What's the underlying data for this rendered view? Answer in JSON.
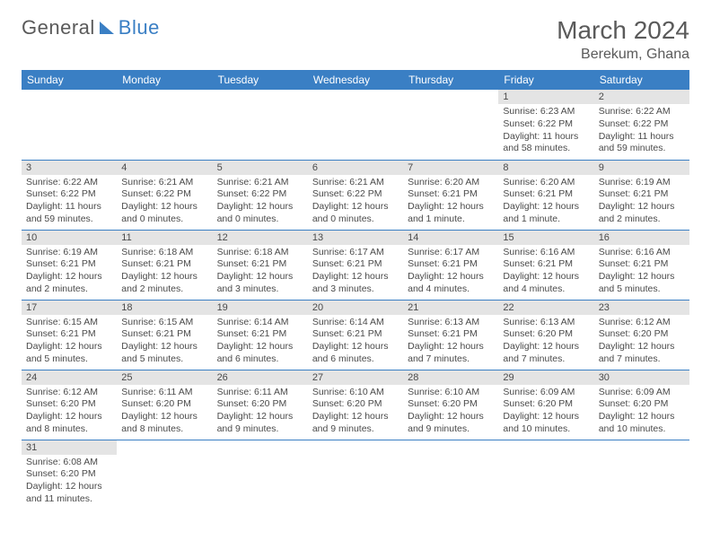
{
  "logo": {
    "text_a": "General",
    "text_b": "Blue"
  },
  "title": "March 2024",
  "location": "Berekum, Ghana",
  "colors": {
    "header_bg": "#3a7fc4",
    "header_fg": "#ffffff",
    "daynum_bg": "#e4e4e4",
    "row_border": "#3a7fc4",
    "text": "#4a4a4a",
    "page_bg": "#ffffff"
  },
  "weekdays": [
    "Sunday",
    "Monday",
    "Tuesday",
    "Wednesday",
    "Thursday",
    "Friday",
    "Saturday"
  ],
  "weeks": [
    [
      null,
      null,
      null,
      null,
      null,
      {
        "n": "1",
        "sunrise": "Sunrise: 6:23 AM",
        "sunset": "Sunset: 6:22 PM",
        "daylight": "Daylight: 11 hours and 58 minutes."
      },
      {
        "n": "2",
        "sunrise": "Sunrise: 6:22 AM",
        "sunset": "Sunset: 6:22 PM",
        "daylight": "Daylight: 11 hours and 59 minutes."
      }
    ],
    [
      {
        "n": "3",
        "sunrise": "Sunrise: 6:22 AM",
        "sunset": "Sunset: 6:22 PM",
        "daylight": "Daylight: 11 hours and 59 minutes."
      },
      {
        "n": "4",
        "sunrise": "Sunrise: 6:21 AM",
        "sunset": "Sunset: 6:22 PM",
        "daylight": "Daylight: 12 hours and 0 minutes."
      },
      {
        "n": "5",
        "sunrise": "Sunrise: 6:21 AM",
        "sunset": "Sunset: 6:22 PM",
        "daylight": "Daylight: 12 hours and 0 minutes."
      },
      {
        "n": "6",
        "sunrise": "Sunrise: 6:21 AM",
        "sunset": "Sunset: 6:22 PM",
        "daylight": "Daylight: 12 hours and 0 minutes."
      },
      {
        "n": "7",
        "sunrise": "Sunrise: 6:20 AM",
        "sunset": "Sunset: 6:21 PM",
        "daylight": "Daylight: 12 hours and 1 minute."
      },
      {
        "n": "8",
        "sunrise": "Sunrise: 6:20 AM",
        "sunset": "Sunset: 6:21 PM",
        "daylight": "Daylight: 12 hours and 1 minute."
      },
      {
        "n": "9",
        "sunrise": "Sunrise: 6:19 AM",
        "sunset": "Sunset: 6:21 PM",
        "daylight": "Daylight: 12 hours and 2 minutes."
      }
    ],
    [
      {
        "n": "10",
        "sunrise": "Sunrise: 6:19 AM",
        "sunset": "Sunset: 6:21 PM",
        "daylight": "Daylight: 12 hours and 2 minutes."
      },
      {
        "n": "11",
        "sunrise": "Sunrise: 6:18 AM",
        "sunset": "Sunset: 6:21 PM",
        "daylight": "Daylight: 12 hours and 2 minutes."
      },
      {
        "n": "12",
        "sunrise": "Sunrise: 6:18 AM",
        "sunset": "Sunset: 6:21 PM",
        "daylight": "Daylight: 12 hours and 3 minutes."
      },
      {
        "n": "13",
        "sunrise": "Sunrise: 6:17 AM",
        "sunset": "Sunset: 6:21 PM",
        "daylight": "Daylight: 12 hours and 3 minutes."
      },
      {
        "n": "14",
        "sunrise": "Sunrise: 6:17 AM",
        "sunset": "Sunset: 6:21 PM",
        "daylight": "Daylight: 12 hours and 4 minutes."
      },
      {
        "n": "15",
        "sunrise": "Sunrise: 6:16 AM",
        "sunset": "Sunset: 6:21 PM",
        "daylight": "Daylight: 12 hours and 4 minutes."
      },
      {
        "n": "16",
        "sunrise": "Sunrise: 6:16 AM",
        "sunset": "Sunset: 6:21 PM",
        "daylight": "Daylight: 12 hours and 5 minutes."
      }
    ],
    [
      {
        "n": "17",
        "sunrise": "Sunrise: 6:15 AM",
        "sunset": "Sunset: 6:21 PM",
        "daylight": "Daylight: 12 hours and 5 minutes."
      },
      {
        "n": "18",
        "sunrise": "Sunrise: 6:15 AM",
        "sunset": "Sunset: 6:21 PM",
        "daylight": "Daylight: 12 hours and 5 minutes."
      },
      {
        "n": "19",
        "sunrise": "Sunrise: 6:14 AM",
        "sunset": "Sunset: 6:21 PM",
        "daylight": "Daylight: 12 hours and 6 minutes."
      },
      {
        "n": "20",
        "sunrise": "Sunrise: 6:14 AM",
        "sunset": "Sunset: 6:21 PM",
        "daylight": "Daylight: 12 hours and 6 minutes."
      },
      {
        "n": "21",
        "sunrise": "Sunrise: 6:13 AM",
        "sunset": "Sunset: 6:21 PM",
        "daylight": "Daylight: 12 hours and 7 minutes."
      },
      {
        "n": "22",
        "sunrise": "Sunrise: 6:13 AM",
        "sunset": "Sunset: 6:20 PM",
        "daylight": "Daylight: 12 hours and 7 minutes."
      },
      {
        "n": "23",
        "sunrise": "Sunrise: 6:12 AM",
        "sunset": "Sunset: 6:20 PM",
        "daylight": "Daylight: 12 hours and 7 minutes."
      }
    ],
    [
      {
        "n": "24",
        "sunrise": "Sunrise: 6:12 AM",
        "sunset": "Sunset: 6:20 PM",
        "daylight": "Daylight: 12 hours and 8 minutes."
      },
      {
        "n": "25",
        "sunrise": "Sunrise: 6:11 AM",
        "sunset": "Sunset: 6:20 PM",
        "daylight": "Daylight: 12 hours and 8 minutes."
      },
      {
        "n": "26",
        "sunrise": "Sunrise: 6:11 AM",
        "sunset": "Sunset: 6:20 PM",
        "daylight": "Daylight: 12 hours and 9 minutes."
      },
      {
        "n": "27",
        "sunrise": "Sunrise: 6:10 AM",
        "sunset": "Sunset: 6:20 PM",
        "daylight": "Daylight: 12 hours and 9 minutes."
      },
      {
        "n": "28",
        "sunrise": "Sunrise: 6:10 AM",
        "sunset": "Sunset: 6:20 PM",
        "daylight": "Daylight: 12 hours and 9 minutes."
      },
      {
        "n": "29",
        "sunrise": "Sunrise: 6:09 AM",
        "sunset": "Sunset: 6:20 PM",
        "daylight": "Daylight: 12 hours and 10 minutes."
      },
      {
        "n": "30",
        "sunrise": "Sunrise: 6:09 AM",
        "sunset": "Sunset: 6:20 PM",
        "daylight": "Daylight: 12 hours and 10 minutes."
      }
    ],
    [
      {
        "n": "31",
        "sunrise": "Sunrise: 6:08 AM",
        "sunset": "Sunset: 6:20 PM",
        "daylight": "Daylight: 12 hours and 11 minutes."
      },
      null,
      null,
      null,
      null,
      null,
      null
    ]
  ]
}
